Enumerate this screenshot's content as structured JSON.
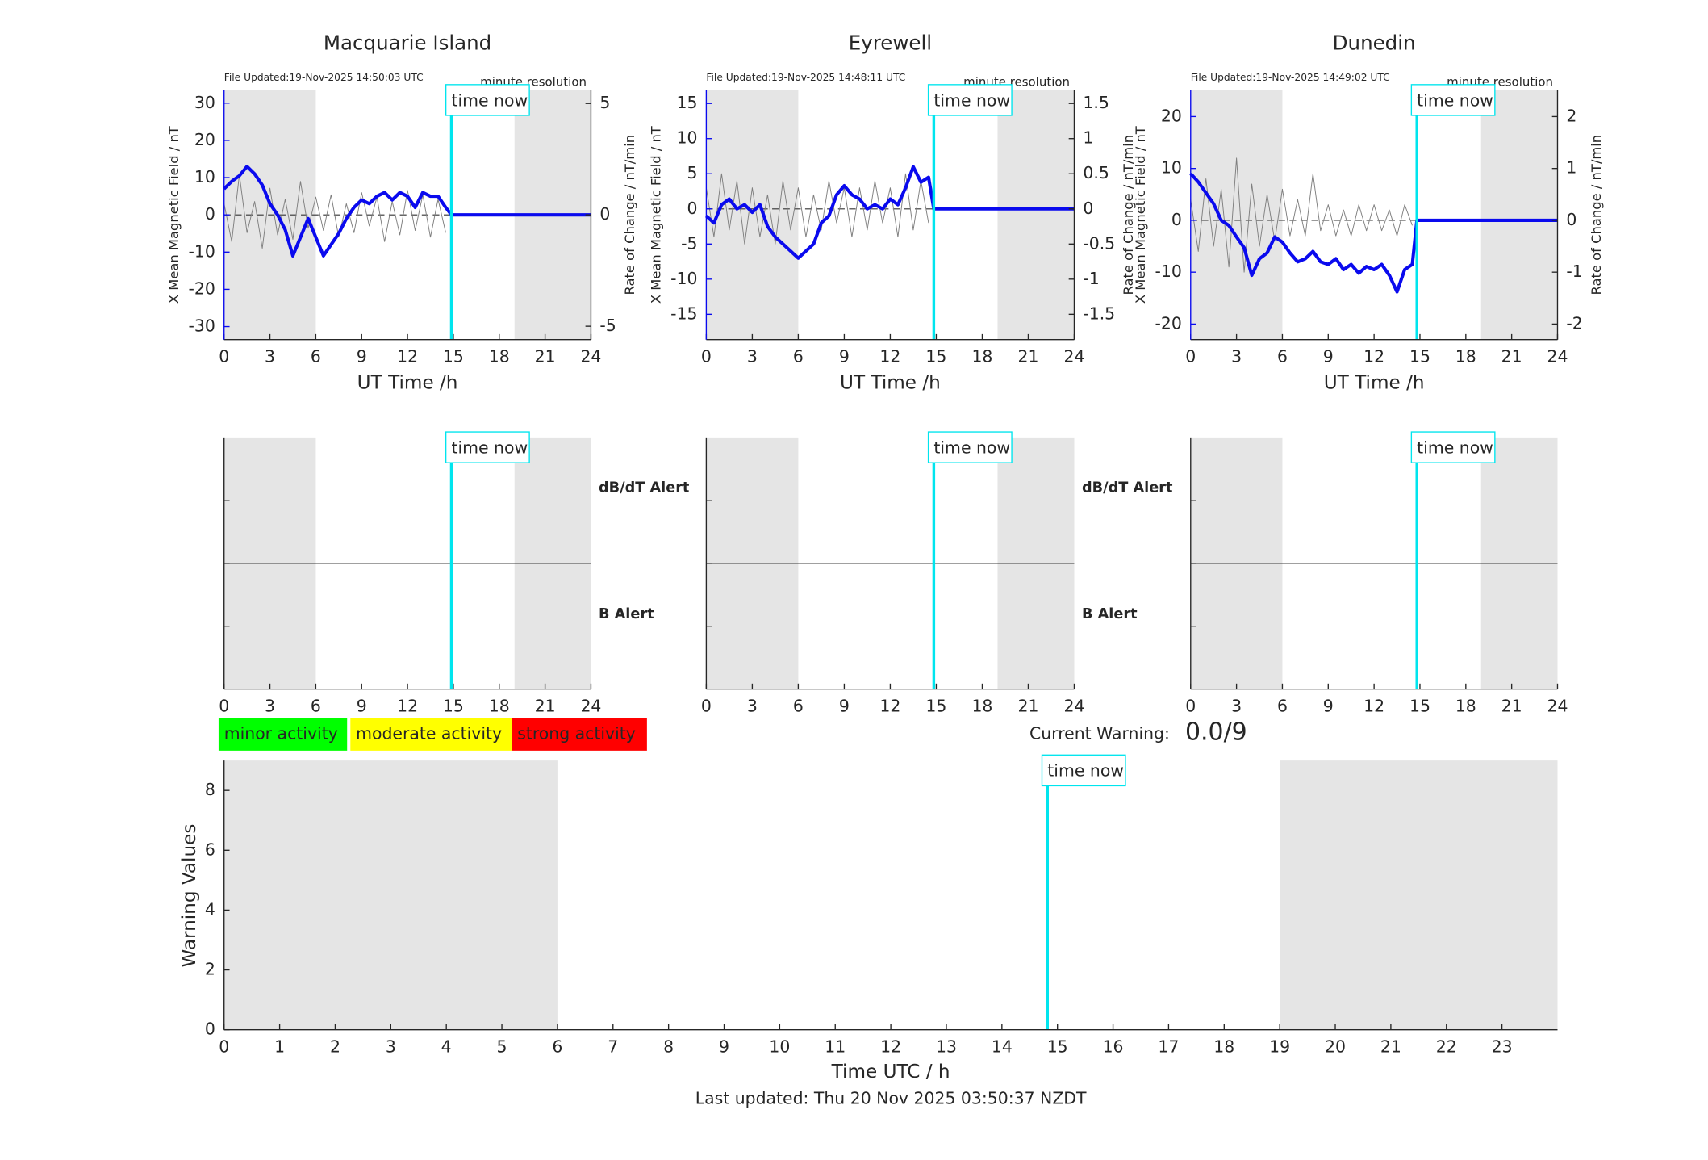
{
  "chart_data": [
    {
      "type": "line",
      "title": "Macquarie Island",
      "subtitle": "File Updated:19-Nov-2025 14:50:03 UTC",
      "annotation": "minute resolution",
      "marker_label": "time now",
      "time_now": 14.87,
      "xlabel": "UT Time /h",
      "ylabel": "X Mean Magnetic Field / nT",
      "y2label": "Rate of Change / nT/min",
      "xlim": [
        0,
        24
      ],
      "xticks": [
        0,
        3,
        6,
        9,
        12,
        15,
        18,
        21,
        24
      ],
      "ylim": [
        -33.5,
        33.5
      ],
      "yticks": [
        -30,
        -20,
        -10,
        0,
        10,
        20,
        30
      ],
      "y2lim": [
        -5.6,
        5.6
      ],
      "y2ticks": [
        -5,
        0,
        5
      ],
      "shaded": [
        [
          0,
          6
        ],
        [
          19,
          24
        ]
      ],
      "x": [
        0,
        0.5,
        1,
        1.5,
        2,
        2.5,
        3,
        3.5,
        4,
        4.5,
        5,
        5.5,
        6,
        6.5,
        7,
        7.5,
        8,
        8.5,
        9,
        9.5,
        10,
        10.5,
        11,
        11.5,
        12,
        12.5,
        13,
        13.5,
        14,
        14.5,
        14.87,
        24
      ],
      "series": [
        {
          "color": "#7f7f7f",
          "axis": "y2",
          "values": [
            0.5,
            -1.2,
            1.8,
            -0.8,
            0.6,
            -1.5,
            1.2,
            -0.9,
            0.7,
            -1.1,
            1.5,
            -0.6,
            0.8,
            -0.7,
            0.9,
            -1.0,
            0.5,
            -0.8,
            1.0,
            -0.5,
            0.8,
            -1.2,
            0.6,
            -0.9,
            1.1,
            -0.7,
            0.9,
            -1.0,
            0.7,
            -0.8,
            null,
            null
          ]
        },
        {
          "color": "#0a0aee",
          "values": [
            7,
            9,
            10.5,
            13,
            11,
            8,
            3,
            0,
            -4,
            -11,
            -6,
            -1,
            -6,
            -11,
            -8,
            -5,
            -1,
            2,
            4,
            3,
            5,
            6,
            4,
            6,
            5,
            2,
            6,
            5,
            5,
            2,
            0,
            0
          ]
        }
      ]
    },
    {
      "type": "line",
      "title": "Eyrewell",
      "subtitle": "File Updated:19-Nov-2025 14:48:11 UTC",
      "annotation": "minute resolution",
      "marker_label": "time now",
      "time_now": 14.84,
      "xlabel": "UT Time /h",
      "ylabel": "X Mean Magnetic Field / nT",
      "y2label": "Rate of Change / nT/min",
      "xlim": [
        0,
        24
      ],
      "xticks": [
        0,
        3,
        6,
        9,
        12,
        15,
        18,
        21,
        24
      ],
      "ylim": [
        -18.6,
        16.9
      ],
      "yticks": [
        -15,
        -10,
        -5,
        0,
        5,
        10,
        15
      ],
      "y2lim": [
        -1.86,
        1.69
      ],
      "y2ticks": [
        -1.5,
        -1,
        -0.5,
        0,
        0.5,
        1,
        1.5
      ],
      "shaded": [
        [
          0,
          6
        ],
        [
          19,
          24
        ]
      ],
      "x": [
        0,
        0.5,
        1,
        1.5,
        2,
        2.5,
        3,
        3.5,
        4,
        4.5,
        5,
        5.5,
        6,
        6.5,
        7,
        7.5,
        8,
        8.5,
        9,
        9.5,
        10,
        10.5,
        11,
        11.5,
        12,
        12.5,
        13,
        13.5,
        14,
        14.5,
        14.84,
        24
      ],
      "series": [
        {
          "color": "#7f7f7f",
          "axis": "y2",
          "values": [
            0.3,
            -0.4,
            0.5,
            -0.3,
            0.4,
            -0.5,
            0.3,
            -0.4,
            0.2,
            -0.5,
            0.4,
            -0.3,
            0.3,
            -0.4,
            0.2,
            -0.3,
            0.4,
            -0.2,
            0.3,
            -0.4,
            0.3,
            -0.3,
            0.4,
            -0.2,
            0.3,
            -0.4,
            0.5,
            -0.3,
            0.4,
            -0.2,
            null,
            null
          ]
        },
        {
          "color": "#0a0aee",
          "values": [
            -1,
            -2,
            0.6,
            1.4,
            0,
            0.6,
            -0.5,
            0.6,
            -2.5,
            -4,
            -5,
            -6,
            -7,
            -6,
            -5,
            -2,
            -1,
            2,
            3.3,
            2,
            1.4,
            0,
            0.6,
            0,
            1.4,
            0.6,
            3,
            6,
            3.8,
            4.5,
            0,
            0
          ]
        }
      ]
    },
    {
      "type": "line",
      "title": "Dunedin",
      "subtitle": "File Updated:19-Nov-2025 14:49:02 UTC",
      "annotation": "minute resolution",
      "marker_label": "time now",
      "time_now": 14.8,
      "xlabel": "UT Time /h",
      "ylabel": "X Mean Magnetic Field / nT",
      "y2label": "Rate of Change / nT/min",
      "xlim": [
        0,
        24
      ],
      "xticks": [
        0,
        3,
        6,
        9,
        12,
        15,
        18,
        21,
        24
      ],
      "ylim": [
        -23,
        25.1
      ],
      "yticks": [
        -20,
        -10,
        0,
        10,
        20
      ],
      "y2lim": [
        -2.3,
        2.51
      ],
      "y2ticks": [
        -2,
        -1,
        0,
        1,
        2
      ],
      "shaded": [
        [
          0,
          6
        ],
        [
          19,
          24
        ]
      ],
      "x": [
        0,
        0.5,
        1,
        1.5,
        2,
        2.5,
        3,
        3.5,
        4,
        4.5,
        5,
        5.5,
        6,
        6.5,
        7,
        7.5,
        8,
        8.5,
        9,
        9.5,
        10,
        10.5,
        11,
        11.5,
        12,
        12.5,
        13,
        13.5,
        14,
        14.5,
        14.8,
        24
      ],
      "series": [
        {
          "color": "#7f7f7f",
          "axis": "y2",
          "values": [
            0.4,
            -0.6,
            0.8,
            -0.5,
            0.6,
            -0.9,
            1.2,
            -1.0,
            0.7,
            -0.5,
            0.5,
            -0.4,
            0.6,
            -0.3,
            0.4,
            -0.3,
            0.9,
            -0.2,
            0.3,
            -0.3,
            0.2,
            -0.3,
            0.3,
            -0.2,
            0.3,
            -0.2,
            0.2,
            -0.3,
            0.3,
            -0.1,
            null,
            null
          ]
        },
        {
          "color": "#0a0aee",
          "values": [
            9,
            7.4,
            5.3,
            3.2,
            0,
            -1,
            -3.2,
            -5.3,
            -10.6,
            -7.4,
            -6.3,
            -3.2,
            -4.2,
            -6.3,
            -8,
            -7.4,
            -6,
            -8,
            -8.5,
            -7.4,
            -9.5,
            -8.5,
            -10.2,
            -8.9,
            -9.5,
            -8.5,
            -10.6,
            -13.8,
            -9.5,
            -8.5,
            0,
            0
          ]
        }
      ]
    },
    {
      "type": "alert",
      "marker_label": "time now",
      "time_now": 14.87,
      "xlim": [
        0,
        24
      ],
      "xticks": [
        0,
        3,
        6,
        9,
        12,
        15,
        18,
        21,
        24
      ],
      "ylim": [
        -2,
        2
      ],
      "yticks": [
        -1,
        0,
        1
      ],
      "shaded": [
        [
          0,
          6
        ],
        [
          19,
          24
        ]
      ],
      "alert_labels": [
        {
          "text": "dB/dT Alert",
          "color": "#000000"
        },
        {
          "text": "B Alert",
          "color": "#0a0aee"
        }
      ]
    },
    {
      "type": "alert",
      "marker_label": "time now",
      "time_now": 14.84,
      "xlim": [
        0,
        24
      ],
      "xticks": [
        0,
        3,
        6,
        9,
        12,
        15,
        18,
        21,
        24
      ],
      "ylim": [
        -2,
        2
      ],
      "yticks": [
        -1,
        0,
        1
      ],
      "shaded": [
        [
          0,
          6
        ],
        [
          19,
          24
        ]
      ],
      "alert_labels": [
        {
          "text": "dB/dT Alert",
          "color": "#000000"
        },
        {
          "text": "B Alert",
          "color": "#0a0aee"
        }
      ]
    },
    {
      "type": "alert",
      "marker_label": "time now",
      "time_now": 14.8,
      "xlim": [
        0,
        24
      ],
      "xticks": [
        0,
        3,
        6,
        9,
        12,
        15,
        18,
        21,
        24
      ],
      "ylim": [
        -2,
        2
      ],
      "yticks": [
        -1,
        0,
        1
      ],
      "shaded": [
        [
          0,
          6
        ],
        [
          19,
          24
        ]
      ]
    },
    {
      "type": "warning",
      "marker_label": "time now",
      "time_now": 14.82,
      "legend": [
        {
          "name": "minor activity",
          "color": "#00ff00"
        },
        {
          "name": "moderate activity",
          "color": "#ffff00"
        },
        {
          "name": "strong activity",
          "color": "#ff0000"
        }
      ],
      "current_warning_label": "Current Warning:",
      "current_warning": "0.0/9",
      "xlabel": "Time UTC / h",
      "ylabel": "Warning Values",
      "xlim": [
        0,
        24
      ],
      "xticks": [
        0,
        1,
        2,
        3,
        4,
        5,
        6,
        7,
        8,
        9,
        10,
        11,
        12,
        13,
        14,
        15,
        16,
        17,
        18,
        19,
        20,
        21,
        22,
        23
      ],
      "ylim": [
        0,
        9
      ],
      "yticks": [
        0,
        2,
        4,
        6,
        8
      ],
      "shaded": [
        [
          0,
          6
        ],
        [
          19,
          24
        ]
      ],
      "footer": "Last updated: Thu 20 Nov 2025 03:50:37 NZDT"
    }
  ]
}
